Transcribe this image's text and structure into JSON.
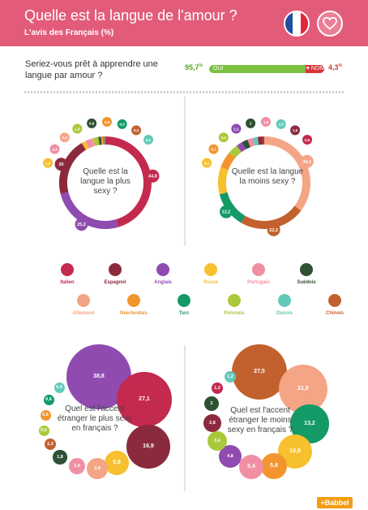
{
  "header": {
    "title": "Quelle est la langue de l'amour ?",
    "subtitle": "L'avis des Français (%)"
  },
  "poll": {
    "question": "Seriez-vous prêt à apprendre une langue par amour ?",
    "oui_label": "OUI",
    "non_label": "NON",
    "oui_pct": "95,7",
    "non_pct": "4,3",
    "pct_sign": "%"
  },
  "brand": {
    "logo": "+Babbel"
  },
  "colors": {
    "header": "#e25c79"
  },
  "chart_data": [
    {
      "type": "pie",
      "title": "Quelle est la langue la plus sexy ?",
      "slices": [
        {
          "name": "Italien",
          "value": 44.8,
          "label": "44,8",
          "color": "#c4294e"
        },
        {
          "name": "Anglais",
          "value": 25.2,
          "label": "25,2",
          "color": "#8f4bb0"
        },
        {
          "name": "Espagnol",
          "value": 20,
          "label": "20",
          "color": "#8c2a3d"
        },
        {
          "name": "Russe",
          "value": 1.4,
          "label": "1,4",
          "color": "#f7c02e"
        },
        {
          "name": "Portugais",
          "value": 2.4,
          "label": "2,4",
          "color": "#f08fa3"
        },
        {
          "name": "Allemand",
          "value": 0.4,
          "label": "0,4",
          "color": "#f4a585"
        },
        {
          "name": "Polonais",
          "value": 1.8,
          "label": "1,8",
          "color": "#a9c93a"
        },
        {
          "name": "Suédois",
          "value": 0.9,
          "label": "0,9",
          "color": "#2e5133"
        },
        {
          "name": "Néerlandais",
          "value": 0.8,
          "label": "0,8",
          "color": "#f2952f"
        },
        {
          "name": "Turc",
          "value": 0.3,
          "label": "0,3",
          "color": "#139a66"
        },
        {
          "name": "Chinois",
          "value": 0.3,
          "label": "0,3",
          "color": "#c3612e"
        },
        {
          "name": "Danois",
          "value": 0.1,
          "label": "0,1",
          "color": "#62c9b8"
        }
      ]
    },
    {
      "type": "pie",
      "title": "Quelle est la langue la moins sexy ?",
      "slices": [
        {
          "name": "Allemand",
          "value": 34.1,
          "label": "34,1",
          "color": "#f4a585"
        },
        {
          "name": "Chinois",
          "value": 22.2,
          "label": "22,2",
          "color": "#c3612e"
        },
        {
          "name": "Turc",
          "value": 12.2,
          "label": "12,2",
          "color": "#139a66"
        },
        {
          "name": "Russe",
          "value": 9.1,
          "label": "9,1",
          "color": "#f7c02e"
        },
        {
          "name": "Néerlandais",
          "value": 5.7,
          "label": "5,7",
          "color": "#f2952f"
        },
        {
          "name": "Polonais",
          "value": 3.4,
          "label": "3,4",
          "color": "#a9c93a"
        },
        {
          "name": "Anglais",
          "value": 2.1,
          "label": "2,1",
          "color": "#8f4bb0"
        },
        {
          "name": "Suédois",
          "value": 2,
          "label": "2",
          "color": "#2e5133"
        },
        {
          "name": "Portugais",
          "value": 1.9,
          "label": "1,9",
          "color": "#f08fa3"
        },
        {
          "name": "Danois",
          "value": 1.6,
          "label": "1,6",
          "color": "#62c9b8"
        },
        {
          "name": "Espagnol",
          "value": 1.6,
          "label": "1,6",
          "color": "#8c2a3d"
        },
        {
          "name": "Italien",
          "value": 0.6,
          "label": "0,6",
          "color": "#c4294e"
        }
      ]
    },
    {
      "type": "bubble",
      "title": "Quel est l'accent étranger le plus sexy en français ?",
      "bubbles": [
        {
          "name": "Anglais",
          "value": 38.8,
          "label": "38,8",
          "color": "#8f4bb0"
        },
        {
          "name": "Italien",
          "value": 27.1,
          "label": "27,1",
          "color": "#c4294e"
        },
        {
          "name": "Espagnol",
          "value": 16.9,
          "label": "16,9",
          "color": "#8c2a3d"
        },
        {
          "name": "Russe",
          "value": 5.6,
          "label": "5,6",
          "color": "#f7c02e"
        },
        {
          "name": "Allemand",
          "value": 3.9,
          "label": "3,9",
          "color": "#f4a585"
        },
        {
          "name": "Portugais",
          "value": 2.4,
          "label": "2,4",
          "color": "#f08fa3"
        },
        {
          "name": "Suédois",
          "value": 1.8,
          "label": "1,8",
          "color": "#2e5133"
        },
        {
          "name": "Chinois",
          "value": 1.3,
          "label": "1,3",
          "color": "#c3612e"
        },
        {
          "name": "Polonais",
          "value": 0.6,
          "label": "0,6",
          "color": "#a9c93a"
        },
        {
          "name": "Néerlandais",
          "value": 0.6,
          "label": "0,6",
          "color": "#f2952f"
        },
        {
          "name": "Turc",
          "value": 0.6,
          "label": "0,6",
          "color": "#139a66"
        },
        {
          "name": "Danois",
          "value": 0.4,
          "label": "0,4",
          "color": "#62c9b8"
        }
      ]
    },
    {
      "type": "bubble",
      "title": "Quel est l'accent étranger le moins sexy en français ?",
      "bubbles": [
        {
          "name": "Chinois",
          "value": 27.5,
          "label": "27,5",
          "color": "#c3612e"
        },
        {
          "name": "Allemand",
          "value": 21.8,
          "label": "21,8",
          "color": "#f4a585"
        },
        {
          "name": "Turc",
          "value": 13.2,
          "label": "13,2",
          "color": "#139a66"
        },
        {
          "name": "Russe",
          "value": 10.9,
          "label": "10,9",
          "color": "#f7c02e"
        },
        {
          "name": "Néerlandais",
          "value": 5.8,
          "label": "5,8",
          "color": "#f2952f"
        },
        {
          "name": "Portugais",
          "value": 5.4,
          "label": "5,4",
          "color": "#f08fa3"
        },
        {
          "name": "Anglais",
          "value": 4.8,
          "label": "4,8",
          "color": "#8f4bb0"
        },
        {
          "name": "Polonais",
          "value": 3.4,
          "label": "3,4",
          "color": "#a9c93a"
        },
        {
          "name": "Espagnol",
          "value": 2.8,
          "label": "2,8",
          "color": "#8c2a3d"
        },
        {
          "name": "Suédois",
          "value": 2,
          "label": "2",
          "color": "#2e5133"
        },
        {
          "name": "Italien",
          "value": 1.3,
          "label": "1,3",
          "color": "#c4294e"
        },
        {
          "name": "Danois",
          "value": 1.2,
          "label": "1,2",
          "color": "#62c9b8"
        }
      ]
    }
  ],
  "legend": [
    {
      "name": "Italien",
      "color": "#c4294e"
    },
    {
      "name": "Espagnol",
      "color": "#8c2a3d"
    },
    {
      "name": "Anglais",
      "color": "#8f4bb0"
    },
    {
      "name": "Russe",
      "color": "#f7c02e"
    },
    {
      "name": "Portugais",
      "color": "#f08fa3"
    },
    {
      "name": "Suédois",
      "color": "#2e5133"
    },
    {
      "name": "Allemand",
      "color": "#f4a585"
    },
    {
      "name": "Néerlandais",
      "color": "#f2952f"
    },
    {
      "name": "Turc",
      "color": "#139a66"
    },
    {
      "name": "Polonais",
      "color": "#a9c93a"
    },
    {
      "name": "Danois",
      "color": "#62c9b8"
    },
    {
      "name": "Chinois",
      "color": "#c3612e"
    }
  ]
}
